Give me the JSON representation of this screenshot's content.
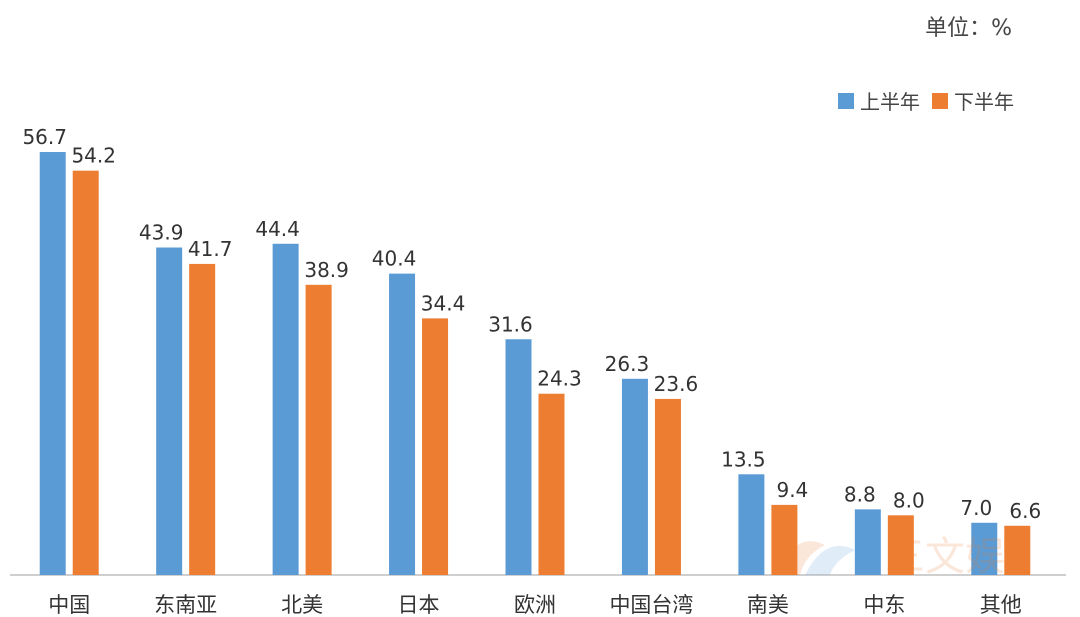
{
  "unit_label": "单位：%",
  "colors": {
    "upper": "#5B9BD5",
    "lower": "#ED7D31"
  },
  "watermark_text": "三文娱",
  "chart_data": {
    "type": "bar",
    "title": "",
    "xlabel": "",
    "ylabel": "",
    "ylim": [
      0,
      60
    ],
    "grid": false,
    "legend_position": "top-right",
    "categories": [
      "中国",
      "东南亚",
      "北美",
      "日本",
      "欧洲",
      "中国台湾",
      "南美",
      "中东",
      "其他"
    ],
    "series": [
      {
        "name": "上半年",
        "values": [
          56.7,
          43.9,
          44.4,
          40.4,
          31.6,
          26.3,
          13.5,
          8.8,
          7.0
        ],
        "labels": [
          "56.7",
          "43.9",
          "44.4",
          "40.4",
          "31.6",
          "26.3",
          "13.5",
          "8.8",
          "7.0"
        ]
      },
      {
        "name": "下半年",
        "values": [
          54.2,
          41.7,
          38.9,
          34.4,
          24.3,
          23.6,
          9.4,
          8.0,
          6.6
        ],
        "labels": [
          "54.2",
          "41.7",
          "38.9",
          "34.4",
          "24.3",
          "23.6",
          "9.4",
          "8.0",
          "6.6"
        ]
      }
    ]
  }
}
